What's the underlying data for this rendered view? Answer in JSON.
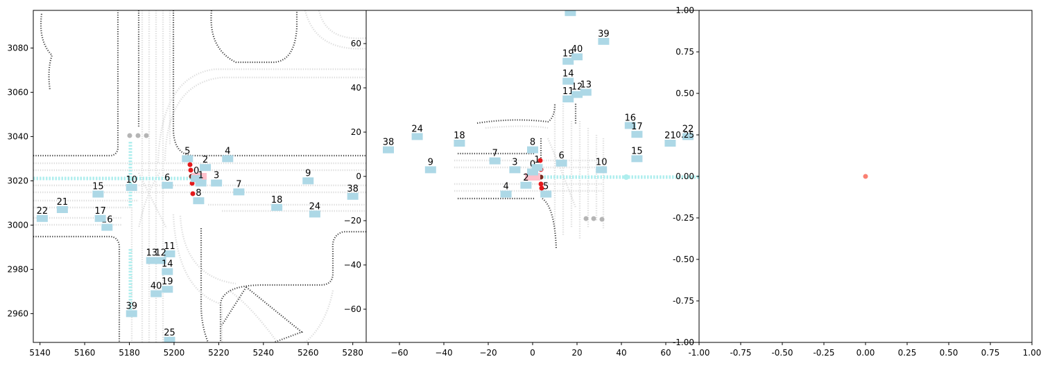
{
  "colors": {
    "road_edge": "#3f3f3f",
    "lane": "#dddddd",
    "vehicle": "#add8e6",
    "ego": "#ffc0cb",
    "route": "#afeeee",
    "signal_red": "#e31a1c",
    "signal_dark": "#7a2e22",
    "pedestrian": "#b5b5b5",
    "origin_marker": "#fa8072"
  },
  "chart_data": [
    {
      "panel": "global-view",
      "type": "scatter",
      "title": "",
      "xlabel": "",
      "ylabel": "",
      "xlim": [
        5137,
        5286
      ],
      "ylim": [
        2947,
        3097
      ],
      "xticks": [
        5140,
        5160,
        5180,
        5200,
        5220,
        5240,
        5260,
        5280
      ],
      "yticks": [
        2960,
        2980,
        3000,
        3020,
        3040,
        3060,
        3080
      ],
      "agents": [
        {
          "id": "0",
          "x": 5210,
          "y": 3021
        },
        {
          "id": "1",
          "x": 5212,
          "y": 3019
        },
        {
          "id": "2",
          "x": 5214,
          "y": 3026
        },
        {
          "id": "3",
          "x": 5219,
          "y": 3019
        },
        {
          "id": "4",
          "x": 5224,
          "y": 3030
        },
        {
          "id": "5",
          "x": 5206,
          "y": 3030
        },
        {
          "id": "6",
          "x": 5197,
          "y": 3018
        },
        {
          "id": "7",
          "x": 5229,
          "y": 3015
        },
        {
          "id": "8",
          "x": 5211,
          "y": 3011
        },
        {
          "id": "9",
          "x": 5260,
          "y": 3020
        },
        {
          "id": "10",
          "x": 5181,
          "y": 3017
        },
        {
          "id": "11",
          "x": 5198,
          "y": 2987
        },
        {
          "id": "12",
          "x": 5194,
          "y": 2984
        },
        {
          "id": "13",
          "x": 5190,
          "y": 2984
        },
        {
          "id": "14",
          "x": 5197,
          "y": 2979
        },
        {
          "id": "15",
          "x": 5166,
          "y": 3014
        },
        {
          "id": "16",
          "x": 5170,
          "y": 2999
        },
        {
          "id": "17",
          "x": 5167,
          "y": 3003
        },
        {
          "id": "18",
          "x": 5246,
          "y": 3008
        },
        {
          "id": "19",
          "x": 5197,
          "y": 2971
        },
        {
          "id": "21",
          "x": 5150,
          "y": 3007
        },
        {
          "id": "22",
          "x": 5141,
          "y": 3003
        },
        {
          "id": "24",
          "x": 5263,
          "y": 3005
        },
        {
          "id": "25",
          "x": 5198,
          "y": 2948
        },
        {
          "id": "38",
          "x": 5280,
          "y": 3013
        },
        {
          "id": "39",
          "x": 5181,
          "y": 2960
        },
        {
          "id": "40",
          "x": 5192,
          "y": 2969
        }
      ]
    },
    {
      "panel": "ego-view",
      "type": "scatter",
      "title": "",
      "xlabel": "",
      "ylabel": "",
      "xlim": [
        -75,
        75
      ],
      "ylim": [
        -75,
        75
      ],
      "xticks": [
        -60,
        -40,
        -20,
        0,
        20,
        40,
        60
      ],
      "yticks": [
        -60,
        -40,
        -20,
        0,
        20,
        40,
        60
      ],
      "agents": [
        {
          "id": "0",
          "x": 0,
          "y": 2
        },
        {
          "id": "1",
          "x": 2,
          "y": 4
        },
        {
          "id": "2",
          "x": -3,
          "y": -4
        },
        {
          "id": "3",
          "x": -8,
          "y": 3
        },
        {
          "id": "4",
          "x": -12,
          "y": -8
        },
        {
          "id": "5",
          "x": 6,
          "y": -8
        },
        {
          "id": "6",
          "x": 13,
          "y": 6
        },
        {
          "id": "7",
          "x": -17,
          "y": 7
        },
        {
          "id": "8",
          "x": 0,
          "y": 12
        },
        {
          "id": "9",
          "x": -46,
          "y": 3
        },
        {
          "id": "10",
          "x": 31,
          "y": 3
        },
        {
          "id": "11",
          "x": 16,
          "y": 35
        },
        {
          "id": "12",
          "x": 20,
          "y": 37
        },
        {
          "id": "13",
          "x": 24,
          "y": 38
        },
        {
          "id": "14",
          "x": 16,
          "y": 43
        },
        {
          "id": "15",
          "x": 47,
          "y": 8
        },
        {
          "id": "16",
          "x": 44,
          "y": 23
        },
        {
          "id": "17",
          "x": 47,
          "y": 19
        },
        {
          "id": "18",
          "x": -33,
          "y": 15
        },
        {
          "id": "19",
          "x": 16,
          "y": 52
        },
        {
          "id": "21",
          "x": 62,
          "y": 15
        },
        {
          "id": "22",
          "x": 70,
          "y": 18
        },
        {
          "id": "24",
          "x": -52,
          "y": 18
        },
        {
          "id": "25",
          "x": 17,
          "y": 74
        },
        {
          "id": "38",
          "x": -65,
          "y": 12
        },
        {
          "id": "39",
          "x": 32,
          "y": 61
        },
        {
          "id": "40",
          "x": 20,
          "y": 54
        }
      ]
    },
    {
      "panel": "empty-view",
      "type": "scatter",
      "title": "",
      "xlabel": "",
      "ylabel": "",
      "xlim": [
        -1,
        1
      ],
      "ylim": [
        -1,
        1
      ],
      "xticks": [
        -1.0,
        -0.75,
        -0.5,
        -0.25,
        0.0,
        0.25,
        0.5,
        0.75,
        1.0
      ],
      "yticks": [
        -1.0,
        -0.75,
        -0.5,
        -0.25,
        0.0,
        0.25,
        0.5,
        0.75,
        1.0
      ],
      "xtick_labels": [
        "-1.00",
        "-0.75",
        "-0.50",
        "-0.25",
        "0.00",
        "0.25",
        "0.50",
        "0.75",
        "1.00"
      ],
      "ytick_labels": [
        "-1.00",
        "-0.75",
        "-0.50",
        "-0.25",
        "0.00",
        "0.25",
        "0.50",
        "0.75",
        "1.00"
      ],
      "points": [
        {
          "x": 0,
          "y": 0
        }
      ]
    }
  ]
}
